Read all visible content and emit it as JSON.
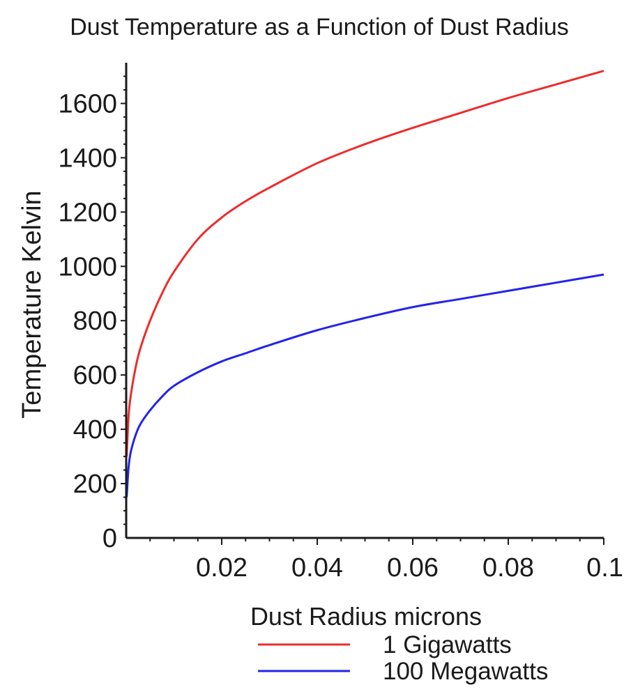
{
  "chart_data": {
    "type": "line",
    "title": "Dust Temperature as a Function of Dust Radius",
    "xlabel": "Dust Radius microns",
    "ylabel": "Temperature Kelvin",
    "xlim": [
      0,
      0.1
    ],
    "ylim": [
      0,
      1750
    ],
    "x_ticks": [
      0.02,
      0.04,
      0.06,
      0.08,
      0.1
    ],
    "x_tick_labels": [
      "0.02",
      "0.04",
      "0.06",
      "0.08",
      "0.1"
    ],
    "y_ticks": [
      0,
      200,
      400,
      600,
      800,
      1000,
      1200,
      1400,
      1600
    ],
    "y_tick_labels": [
      "0",
      "200",
      "400",
      "600",
      "800",
      "1000",
      "1200",
      "1400",
      "1600"
    ],
    "grid": false,
    "legend_position": "bottom-center",
    "series": [
      {
        "name": "1 Gigawatts",
        "color": "#ee2b2b",
        "x": [
          0.0001,
          0.0005,
          0.001,
          0.002,
          0.003,
          0.005,
          0.0075,
          0.01,
          0.015,
          0.02,
          0.025,
          0.03,
          0.04,
          0.05,
          0.06,
          0.07,
          0.08,
          0.09,
          0.1
        ],
        "y": [
          300,
          450,
          530,
          630,
          700,
          800,
          900,
          980,
          1100,
          1180,
          1240,
          1290,
          1380,
          1450,
          1510,
          1565,
          1620,
          1670,
          1720
        ]
      },
      {
        "name": "100 Megawatts",
        "color": "#2323ee",
        "x": [
          0.0001,
          0.0005,
          0.001,
          0.002,
          0.003,
          0.005,
          0.0075,
          0.01,
          0.015,
          0.02,
          0.025,
          0.03,
          0.04,
          0.05,
          0.06,
          0.07,
          0.08,
          0.09,
          0.1
        ],
        "y": [
          150,
          260,
          320,
          380,
          420,
          470,
          520,
          560,
          610,
          650,
          680,
          710,
          765,
          810,
          850,
          880,
          910,
          940,
          970
        ]
      }
    ]
  }
}
